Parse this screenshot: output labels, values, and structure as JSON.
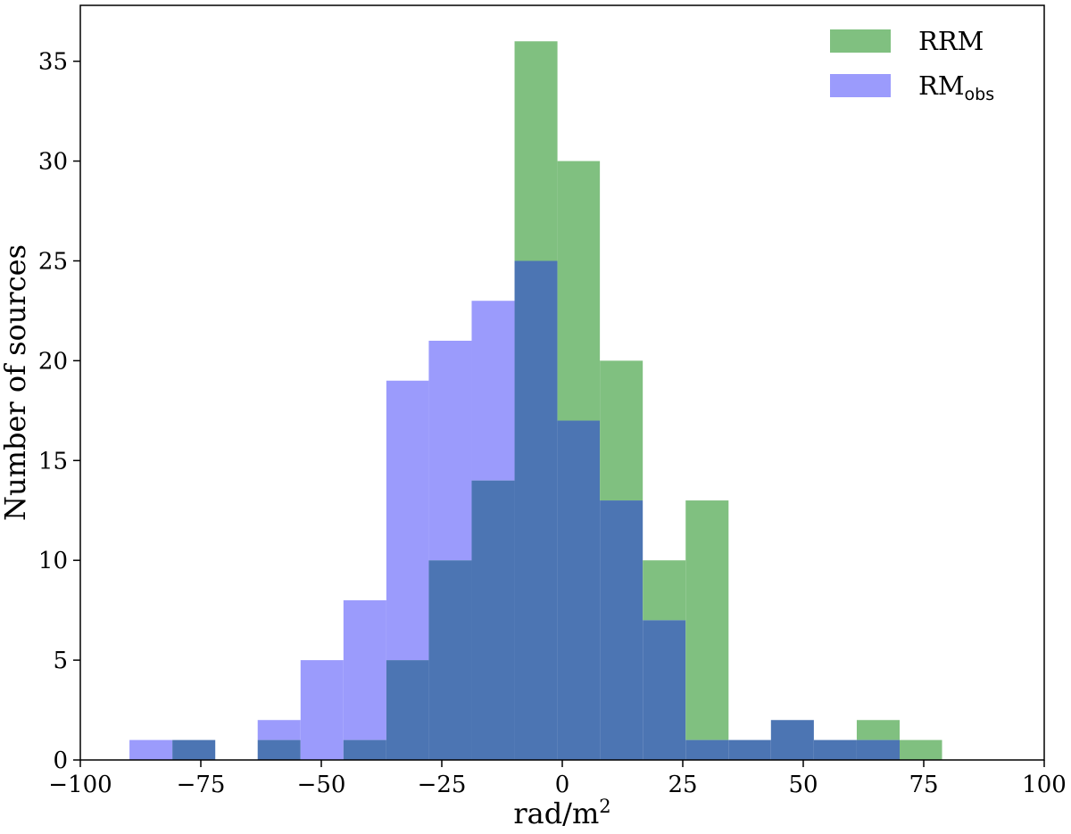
{
  "chart_data": {
    "type": "bar",
    "subtype": "overlaid-histogram",
    "title": "",
    "xlabel": "rad/m",
    "xlabel_superscript": "2",
    "ylabel": "Number of sources",
    "xlim": [
      -100,
      100
    ],
    "ylim": [
      0,
      37.8
    ],
    "x_ticks": [
      -100,
      -75,
      -50,
      -25,
      0,
      25,
      50,
      75,
      100
    ],
    "x_tick_labels": [
      "−100",
      "−75",
      "−50",
      "−25",
      "0",
      "25",
      "50",
      "75",
      "100"
    ],
    "y_ticks": [
      0,
      5,
      10,
      15,
      20,
      25,
      30,
      35
    ],
    "y_tick_labels": [
      "0",
      "5",
      "10",
      "15",
      "20",
      "25",
      "30",
      "35"
    ],
    "grid": false,
    "legend_position": "top-right",
    "bin_edges": [
      -89.8,
      -80.9,
      -72.0,
      -63.2,
      -54.3,
      -45.4,
      -36.5,
      -27.7,
      -18.8,
      -9.9,
      -1.0,
      7.8,
      16.7,
      25.6,
      34.5,
      43.3,
      52.2,
      61.1,
      70.0,
      78.8
    ],
    "series": [
      {
        "name": "RRM",
        "color": "#80c080",
        "values": [
          0,
          1,
          0,
          1,
          0,
          1,
          5,
          10,
          14,
          36,
          30,
          20,
          10,
          13,
          1,
          2,
          1,
          2,
          1
        ]
      },
      {
        "name": "RM",
        "name_subscript": "obs",
        "color": "#9b9bfc",
        "values": [
          1,
          1,
          0,
          2,
          5,
          8,
          19,
          21,
          23,
          25,
          17,
          13,
          7,
          1,
          1,
          2,
          1,
          1,
          0
        ]
      }
    ],
    "overlap_color": "#4c75b3"
  }
}
